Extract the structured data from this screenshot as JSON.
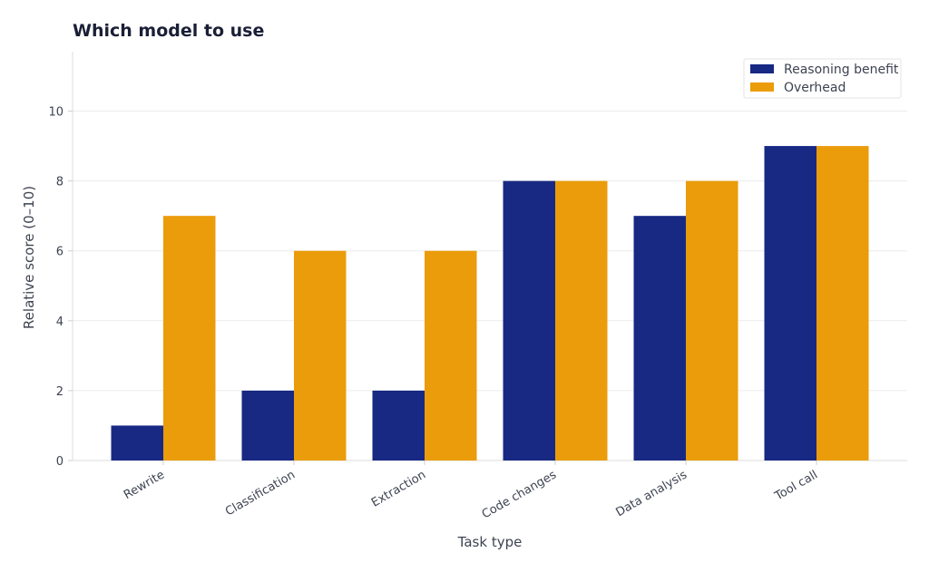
{
  "chart_data": {
    "type": "bar",
    "title": "Which model to use",
    "xlabel": "Task type",
    "ylabel": "Relative score (0–10)",
    "categories": [
      "Rewrite",
      "Classification",
      "Extraction",
      "Code changes",
      "Data analysis",
      "Tool call"
    ],
    "series": [
      {
        "name": "Reasoning benefit",
        "values": [
          1,
          2,
          2,
          8,
          7,
          9
        ],
        "color": "#172983"
      },
      {
        "name": "Overhead",
        "values": [
          7,
          6,
          6,
          8,
          8,
          9
        ],
        "color": "#eb9c0b"
      }
    ],
    "ylim": [
      0,
      11.7
    ],
    "yticks": [
      0,
      2,
      4,
      6,
      8,
      10
    ],
    "grid": true,
    "legend": "top-right"
  }
}
